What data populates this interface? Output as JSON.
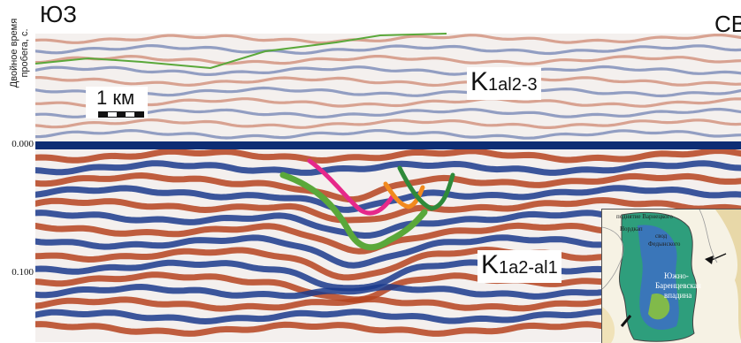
{
  "header": {
    "left_direction": "ЮЗ",
    "right_direction": "СВ"
  },
  "y_axis": {
    "title_line1": "Двойное время",
    "title_line2": "пробега, с.",
    "ticks": [
      "0.000",
      "0.100"
    ]
  },
  "scale_bar": {
    "label": "1 км"
  },
  "formations": {
    "upper": {
      "base": "K",
      "sub": "1al2-3"
    },
    "lower": {
      "base": "K",
      "sub": "1a2-al1"
    }
  },
  "inset_map": {
    "labels": [
      "Южно-",
      "Баренцевская",
      "впадина",
      "свод",
      "Федынского",
      "поднятие Варнецкого",
      "Нордкап"
    ]
  },
  "colors": {
    "red": "#b5431f",
    "blue": "#1a3a8c",
    "horizon_green": "#5aa83a",
    "magenta": "#e6288a",
    "orange": "#f28a1e",
    "dark_green": "#2f8a3a"
  }
}
